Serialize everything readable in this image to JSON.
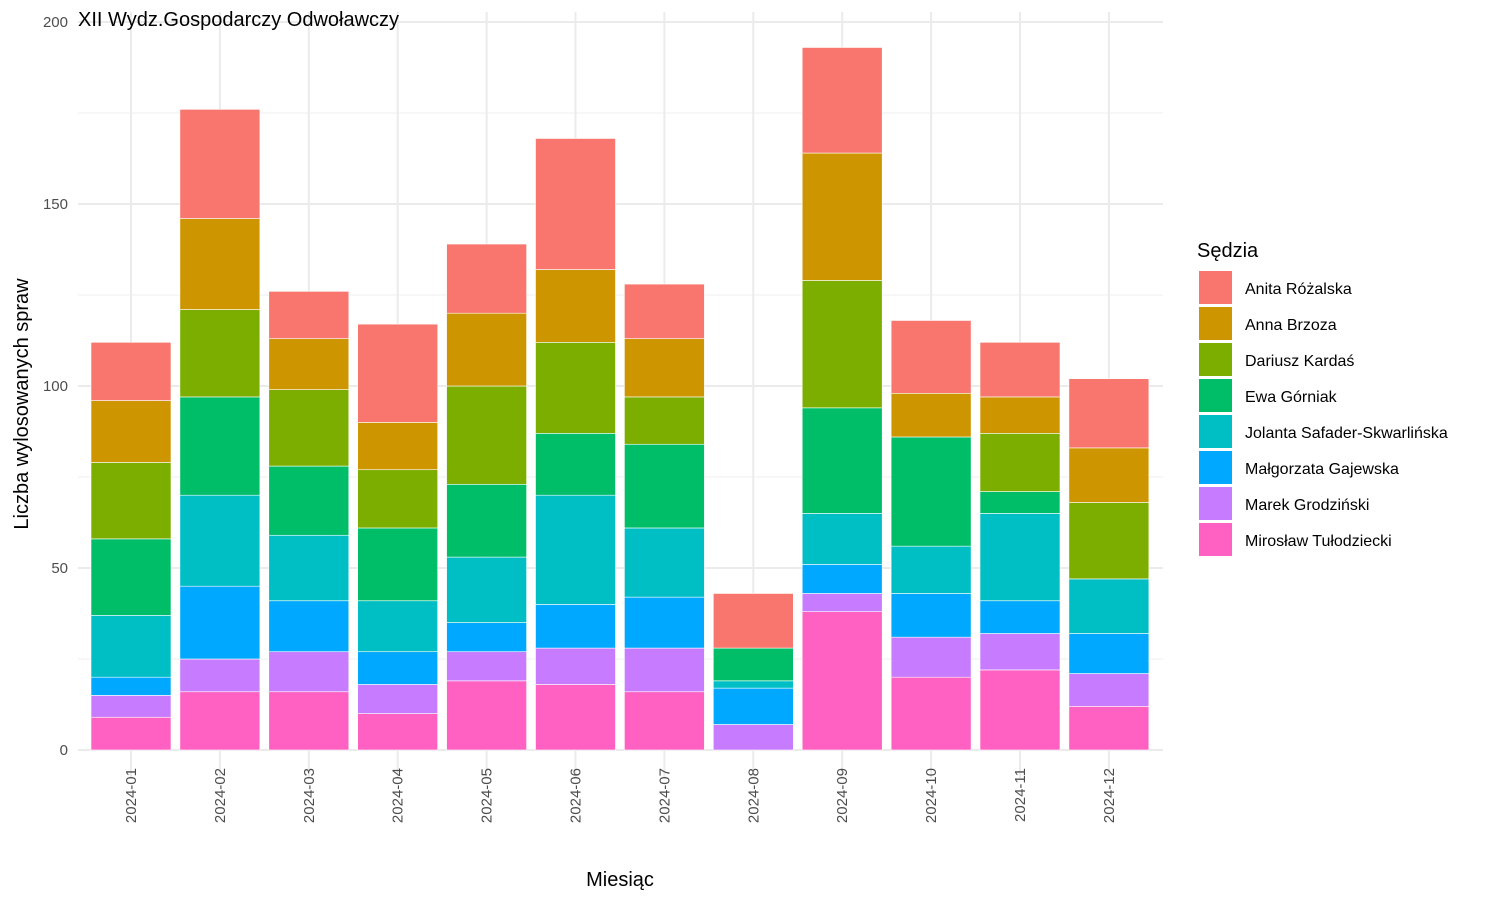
{
  "chart_data": {
    "type": "bar",
    "stacked": true,
    "title": "XII Wydz.Gospodarczy Odwoławczy",
    "xlabel": "Miesiąc",
    "ylabel": "Liczba wylosowanych spraw",
    "ylim": [
      0,
      200
    ],
    "yticks": [
      0,
      50,
      100,
      150,
      200
    ],
    "grid": true,
    "legend_title": "Sędzia",
    "legend_position": "right",
    "categories": [
      "2024-01",
      "2024-02",
      "2024-03",
      "2024-04",
      "2024-05",
      "2024-06",
      "2024-07",
      "2024-08",
      "2024-09",
      "2024-10",
      "2024-11",
      "2024-12"
    ],
    "series": [
      {
        "name": "Mirosław Tułodziecki",
        "color": "#FF61C3",
        "values": [
          9,
          16,
          16,
          10,
          19,
          18,
          16,
          0,
          38,
          20,
          22,
          12
        ]
      },
      {
        "name": "Marek Grodziński",
        "color": "#C77CFF",
        "values": [
          6,
          9,
          11,
          8,
          8,
          10,
          12,
          7,
          5,
          11,
          10,
          9
        ]
      },
      {
        "name": "Małgorzata Gajewska",
        "color": "#00A9FF",
        "values": [
          5,
          20,
          14,
          9,
          8,
          12,
          14,
          10,
          8,
          12,
          9,
          11
        ]
      },
      {
        "name": "Jolanta Safader-Skwarlińska",
        "color": "#00BFC4",
        "values": [
          17,
          25,
          18,
          14,
          18,
          30,
          19,
          2,
          14,
          13,
          24,
          15
        ]
      },
      {
        "name": "Ewa Górniak",
        "color": "#00BE67",
        "values": [
          21,
          27,
          19,
          20,
          20,
          17,
          23,
          9,
          29,
          30,
          6,
          0
        ]
      },
      {
        "name": "Dariusz Kardaś",
        "color": "#7CAE00",
        "values": [
          21,
          24,
          21,
          16,
          27,
          25,
          13,
          0,
          35,
          0,
          16,
          21
        ]
      },
      {
        "name": "Anna Brzoza",
        "color": "#CD9600",
        "values": [
          17,
          25,
          14,
          13,
          20,
          20,
          16,
          0,
          35,
          12,
          10,
          15
        ]
      },
      {
        "name": "Anita Różalska",
        "color": "#F8766D",
        "values": [
          16,
          30,
          13,
          27,
          19,
          36,
          15,
          15,
          29,
          20,
          15,
          19
        ]
      }
    ],
    "legend_order": [
      "Anita Różalska",
      "Anna Brzoza",
      "Dariusz Kardaś",
      "Ewa Górniak",
      "Jolanta Safader-Skwarlińska",
      "Małgorzata Gajewska",
      "Marek Grodziński",
      "Mirosław Tułodziecki"
    ]
  }
}
